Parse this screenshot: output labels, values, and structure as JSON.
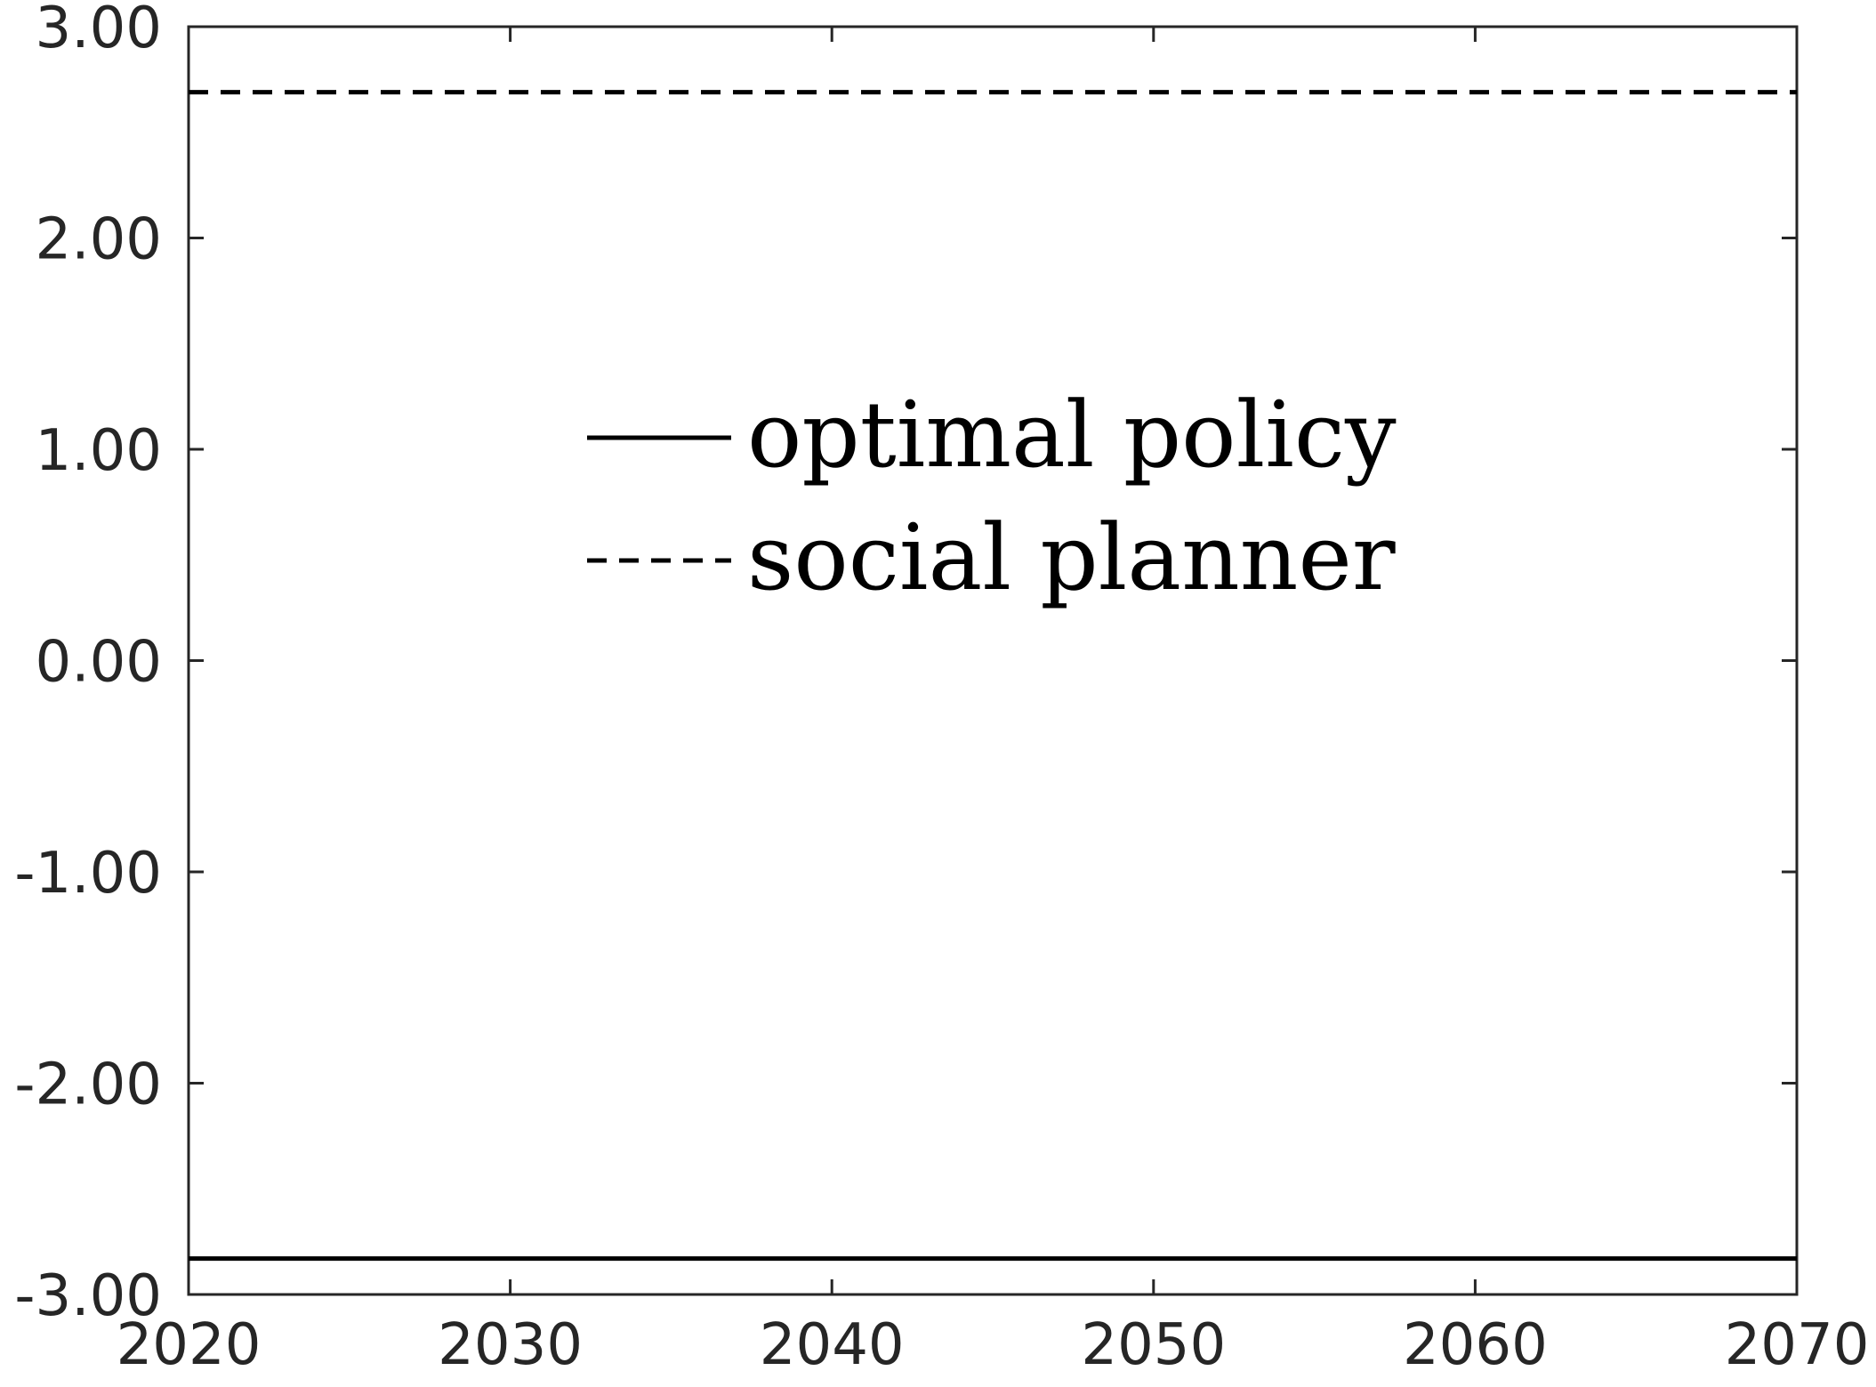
{
  "chart_data": {
    "type": "line",
    "title": "",
    "xlabel": "",
    "ylabel": "",
    "xlim": [
      2020,
      2070
    ],
    "ylim": [
      -3,
      3
    ],
    "x_ticks": [
      2020,
      2030,
      2040,
      2050,
      2060,
      2070
    ],
    "x_tick_labels": [
      "2020",
      "2030",
      "2040",
      "2050",
      "2060",
      "2070"
    ],
    "y_ticks": [
      3,
      2,
      1,
      0,
      -1,
      -2,
      -3
    ],
    "y_tick_labels": [
      "3.00",
      "2.00",
      "1.00",
      "0.00",
      "-1.00",
      "-2.00",
      "-3.00"
    ],
    "grid": false,
    "legend_position": "center",
    "series": [
      {
        "name": "optimal policy",
        "style": "solid",
        "color": "#000000",
        "x": [
          2020,
          2070
        ],
        "y": [
          -2.83,
          -2.83
        ]
      },
      {
        "name": "social planner",
        "style": "dashed",
        "color": "#000000",
        "x": [
          2020,
          2070
        ],
        "y": [
          2.69,
          2.69
        ]
      }
    ]
  }
}
